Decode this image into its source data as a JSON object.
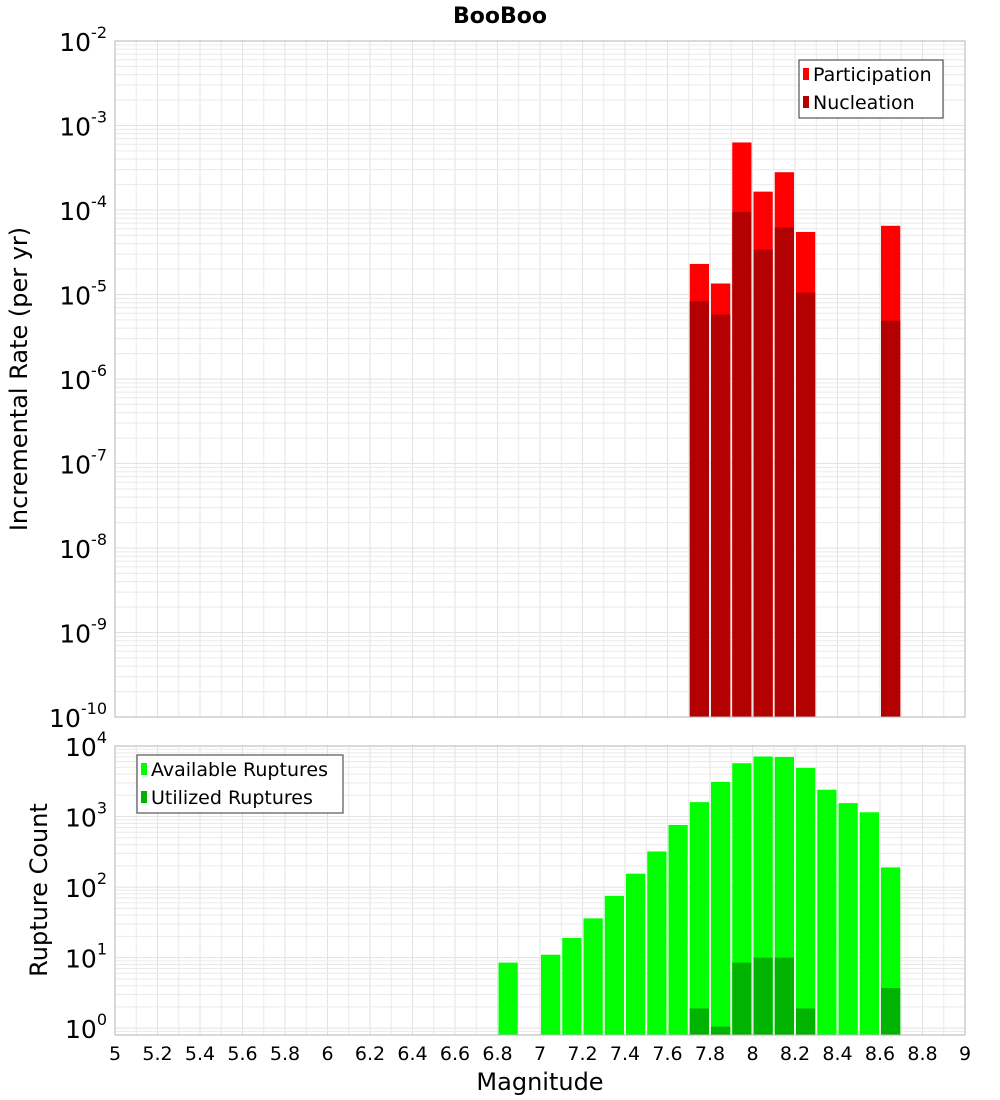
{
  "chart_data": [
    {
      "type": "bar",
      "title": "BooBoo",
      "ylabel": "Incremental Rate (per yr)",
      "xlabel": "",
      "yscale": "log",
      "ylim": [
        1e-10,
        0.01
      ],
      "xlim": [
        5,
        9
      ],
      "y_ticks": [
        {
          "base": "10",
          "exp": "-10",
          "value": 1e-10
        },
        {
          "base": "10",
          "exp": "-9",
          "value": 1e-09
        },
        {
          "base": "10",
          "exp": "-8",
          "value": 1e-08
        },
        {
          "base": "10",
          "exp": "-7",
          "value": 1e-07
        },
        {
          "base": "10",
          "exp": "-6",
          "value": 1e-06
        },
        {
          "base": "10",
          "exp": "-5",
          "value": 1e-05
        },
        {
          "base": "10",
          "exp": "-4",
          "value": 0.0001
        },
        {
          "base": "10",
          "exp": "-3",
          "value": 0.001
        },
        {
          "base": "10",
          "exp": "-2",
          "value": 0.01
        }
      ],
      "legend_position": "top-right",
      "legend": [
        {
          "label": "Participation",
          "color": "#ff0000"
        },
        {
          "label": "Nucleation",
          "color": "#b30000"
        }
      ],
      "series": [
        {
          "name": "Participation",
          "color": "#ff0000",
          "points": [
            {
              "x": 7.75,
              "y": 2.3e-05
            },
            {
              "x": 7.85,
              "y": 1.35e-05
            },
            {
              "x": 7.95,
              "y": 0.00063
            },
            {
              "x": 8.05,
              "y": 0.000165
            },
            {
              "x": 8.15,
              "y": 0.00028
            },
            {
              "x": 8.25,
              "y": 5.5e-05
            },
            {
              "x": 8.65,
              "y": 6.5e-05
            }
          ]
        },
        {
          "name": "Nucleation",
          "color": "#b30000",
          "points": [
            {
              "x": 7.75,
              "y": 8.3e-06
            },
            {
              "x": 7.85,
              "y": 5.8e-06
            },
            {
              "x": 7.95,
              "y": 9.5e-05
            },
            {
              "x": 8.05,
              "y": 3.4e-05
            },
            {
              "x": 8.15,
              "y": 6.2e-05
            },
            {
              "x": 8.25,
              "y": 1.05e-05
            },
            {
              "x": 8.65,
              "y": 4.9e-06
            }
          ]
        }
      ]
    },
    {
      "type": "bar",
      "title": "",
      "ylabel": "Rupture Count",
      "xlabel": "Magnitude",
      "yscale": "log",
      "ylim": [
        0.8,
        10000
      ],
      "xlim": [
        5,
        9
      ],
      "x_ticks": [
        "5",
        "5.2",
        "5.4",
        "5.6",
        "5.8",
        "6",
        "6.2",
        "6.4",
        "6.6",
        "6.8",
        "7",
        "7.2",
        "7.4",
        "7.6",
        "7.8",
        "8",
        "8.2",
        "8.4",
        "8.6",
        "8.8",
        "9"
      ],
      "y_ticks": [
        {
          "base": "10",
          "exp": "0",
          "value": 1
        },
        {
          "base": "10",
          "exp": "1",
          "value": 10
        },
        {
          "base": "10",
          "exp": "2",
          "value": 100
        },
        {
          "base": "10",
          "exp": "3",
          "value": 1000
        },
        {
          "base": "10",
          "exp": "4",
          "value": 10000
        }
      ],
      "legend_position": "top-left",
      "legend": [
        {
          "label": "Available Ruptures",
          "color": "#00ff00"
        },
        {
          "label": "Utilized Ruptures",
          "color": "#00b300"
        }
      ],
      "series": [
        {
          "name": "Available Ruptures",
          "color": "#00ff00",
          "points": [
            {
              "x": 6.85,
              "y": 8.5
            },
            {
              "x": 7.05,
              "y": 11
            },
            {
              "x": 7.15,
              "y": 19
            },
            {
              "x": 7.25,
              "y": 36
            },
            {
              "x": 7.35,
              "y": 75
            },
            {
              "x": 7.45,
              "y": 155
            },
            {
              "x": 7.55,
              "y": 320
            },
            {
              "x": 7.65,
              "y": 760
            },
            {
              "x": 7.75,
              "y": 1600
            },
            {
              "x": 7.85,
              "y": 3100
            },
            {
              "x": 7.95,
              "y": 5700
            },
            {
              "x": 8.05,
              "y": 7100
            },
            {
              "x": 8.15,
              "y": 7000
            },
            {
              "x": 8.25,
              "y": 4900
            },
            {
              "x": 8.35,
              "y": 2400
            },
            {
              "x": 8.45,
              "y": 1550
            },
            {
              "x": 8.55,
              "y": 1150
            },
            {
              "x": 8.65,
              "y": 190
            }
          ]
        },
        {
          "name": "Utilized Ruptures",
          "color": "#00b300",
          "points": [
            {
              "x": 7.75,
              "y": 1.9
            },
            {
              "x": 7.85,
              "y": 1.05
            },
            {
              "x": 7.95,
              "y": 8.5
            },
            {
              "x": 8.05,
              "y": 10
            },
            {
              "x": 8.15,
              "y": 10
            },
            {
              "x": 8.25,
              "y": 1.9
            },
            {
              "x": 8.65,
              "y": 3.7
            }
          ]
        }
      ]
    }
  ]
}
